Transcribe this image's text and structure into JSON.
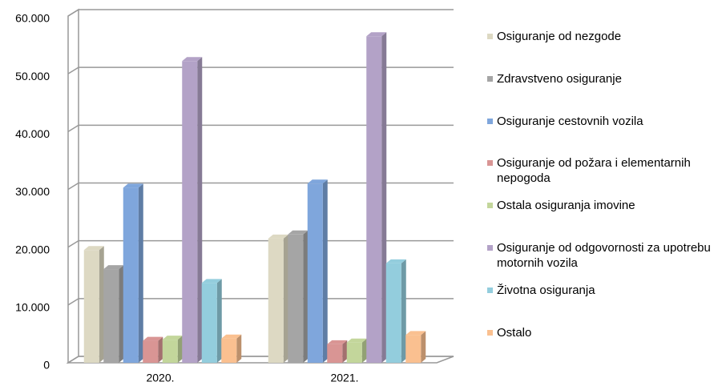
{
  "chart_data": {
    "type": "bar3d",
    "categories": [
      "2020.",
      "2021."
    ],
    "series": [
      {
        "name": "Osiguranje od nezgode",
        "color": "#ddd9c3",
        "values": [
          19500,
          21500
        ]
      },
      {
        "name": "Zdravstveno osiguranje",
        "color": "#a5a5a5",
        "values": [
          16200,
          22200
        ]
      },
      {
        "name": "Osiguranje cestovnih vozila",
        "color": "#7fa6dc",
        "values": [
          30300,
          31000
        ]
      },
      {
        "name": "Osiguranje od požara i elementarnih nepogoda",
        "color": "#d99594",
        "values": [
          3800,
          3200
        ]
      },
      {
        "name": "Ostala osiguranja imovine",
        "color": "#c3d69b",
        "values": [
          4000,
          3500
        ]
      },
      {
        "name": "Osiguranje od odgovornosti za upotrebu motornih vozila",
        "color": "#b3a2c7",
        "values": [
          52200,
          56500
        ]
      },
      {
        "name": "Životna osiguranja",
        "color": "#93cddd",
        "values": [
          13800,
          17200
        ]
      },
      {
        "name": "Ostalo",
        "color": "#fac090",
        "values": [
          4200,
          4800
        ]
      }
    ],
    "ylim": [
      0,
      60000
    ],
    "yticks": [
      0,
      {
        "value": 10000,
        "label": "10.000"
      },
      {
        "value": 20000,
        "label": "20.000"
      },
      {
        "value": 30000,
        "label": "30.000"
      },
      {
        "value": 40000,
        "label": "40.000"
      },
      {
        "value": 50000,
        "label": "50.000"
      },
      {
        "value": 60000,
        "label": "60.000"
      }
    ],
    "grid": true,
    "legend": "right"
  }
}
